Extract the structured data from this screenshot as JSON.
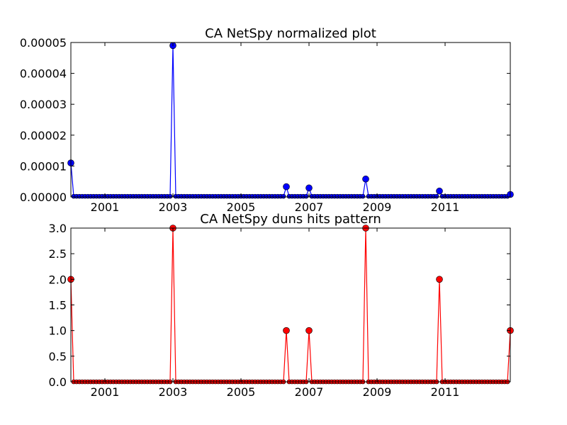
{
  "chart_data": [
    {
      "type": "line",
      "title": "CA NetSpy normalized plot",
      "xlabel": "",
      "ylabel": "",
      "x_start": "2000-01",
      "x_step": "month",
      "x_count": 156,
      "xlim": [
        "2000-01",
        "2012-12"
      ],
      "ylim": [
        0,
        5e-05
      ],
      "ytick_labels": [
        "0.00000",
        "0.00001",
        "0.00002",
        "0.00003",
        "0.00004",
        "0.00005"
      ],
      "xtick_labels": [
        "2001",
        "2003",
        "2005",
        "2007",
        "2009",
        "2011"
      ],
      "grid": false,
      "color": "#0000ff",
      "marker": "circle",
      "values_by_date": {
        "2000-01": 1.1e-05,
        "2003-01": 4.9e-05,
        "2006-05": 3.3e-06,
        "2007-01": 2.9e-06,
        "2008-09": 5.8e-06,
        "2010-11": 1.9e-06,
        "2012-12": 8e-07
      },
      "default_value": 2e-07
    },
    {
      "type": "line",
      "title": "CA NetSpy duns hits pattern",
      "xlabel": "",
      "ylabel": "",
      "x_start": "2000-01",
      "x_step": "month",
      "x_count": 156,
      "xlim": [
        "2000-01",
        "2012-12"
      ],
      "ylim": [
        0,
        3
      ],
      "ytick_labels": [
        "0.0",
        "0.5",
        "1.0",
        "1.5",
        "2.0",
        "2.5",
        "3.0"
      ],
      "xtick_labels": [
        "2001",
        "2003",
        "2005",
        "2007",
        "2009",
        "2011"
      ],
      "grid": false,
      "color": "#ff0000",
      "marker": "circle",
      "values_by_date": {
        "2000-01": 2,
        "2003-01": 3,
        "2006-05": 1,
        "2007-01": 1,
        "2008-09": 3,
        "2010-11": 2,
        "2012-12": 1
      },
      "default_value": 0
    }
  ]
}
